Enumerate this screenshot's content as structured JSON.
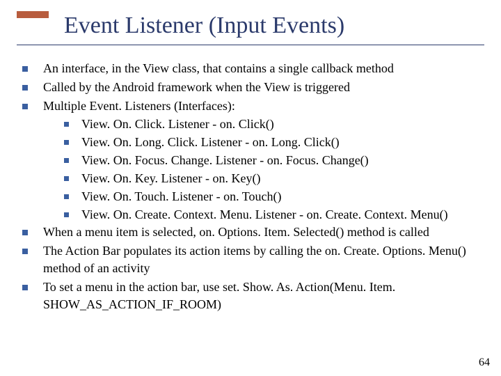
{
  "slide": {
    "title": "Event Listener (Input Events)",
    "page_number": "64",
    "accent_color": "#b85c3e",
    "title_color": "#2b3a6b",
    "bullet_color": "#3a5fa0",
    "body": [
      {
        "level": 1,
        "text": "An interface, in the View class, that contains a single callback method"
      },
      {
        "level": 1,
        "text": "Called by the Android framework when the View is triggered"
      },
      {
        "level": 1,
        "text": "Multiple Event. Listeners (Interfaces):"
      },
      {
        "level": 2,
        "text": "View. On. Click. Listener - on. Click()"
      },
      {
        "level": 2,
        "text": "View. On. Long. Click. Listener - on. Long. Click()"
      },
      {
        "level": 2,
        "text": "View. On. Focus. Change. Listener - on. Focus. Change()"
      },
      {
        "level": 2,
        "text": "View. On. Key. Listener - on. Key()"
      },
      {
        "level": 2,
        "text": "View. On. Touch. Listener - on. Touch()"
      },
      {
        "level": 2,
        "text": "View. On. Create. Context. Menu. Listener - on. Create. Context. Menu()"
      },
      {
        "level": 1,
        "text": "When a menu item is selected, on. Options. Item. Selected() method is called"
      },
      {
        "level": 1,
        "text": "The Action Bar populates its action items by calling the on. Create. Options. Menu() method of an activity"
      },
      {
        "level": 1,
        "text": "To set a menu in the action bar, use set. Show. As. Action(Menu. Item. SHOW_AS_ACTION_IF_ROOM)"
      }
    ]
  }
}
